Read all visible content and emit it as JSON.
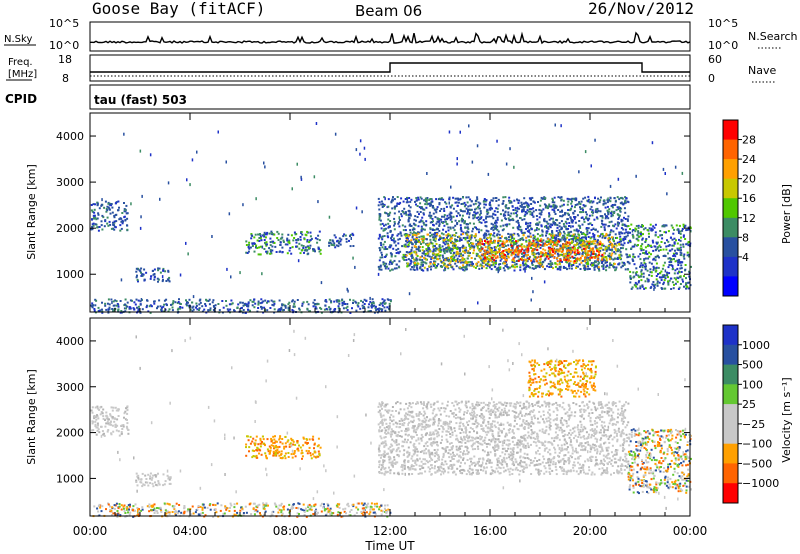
{
  "header": {
    "station": "Goose Bay (fitACF)",
    "beam": "Beam 06",
    "date": "26/Nov/2012"
  },
  "top_panels": {
    "nsky": {
      "label": "N.Sky",
      "ticks": [
        "10^5",
        "10^0"
      ]
    },
    "nsearch": {
      "label": "N.Search",
      "ticks": [
        "10^5",
        "10^0"
      ]
    },
    "freq": {
      "label_line1": "Freq.",
      "label_line2": "[MHz]",
      "ticks": [
        "18",
        "8"
      ]
    },
    "nave": {
      "label": "Nave",
      "ticks": [
        "60",
        "0"
      ]
    },
    "cpid": {
      "label": "CPID",
      "value": "tau (fast) 503"
    }
  },
  "time_axis": {
    "label": "Time UT",
    "ticks": [
      "00:00",
      "04:00",
      "08:00",
      "12:00",
      "16:00",
      "20:00",
      "00:00"
    ]
  },
  "chart_data": [
    {
      "type": "heatmap",
      "panel": "power",
      "ylabel": "Slant Range [km]",
      "yticks": [
        1000,
        2000,
        3000,
        4000
      ],
      "ylim": [
        180,
        4500
      ],
      "xlim_hours": [
        0,
        24
      ],
      "colorbar": {
        "label": "Power [dB]",
        "ticks": [
          "28",
          "24",
          "20",
          "16",
          "12",
          "8",
          "4"
        ],
        "colors": [
          "#ff0000",
          "#ff6400",
          "#ffa000",
          "#c8c800",
          "#50c800",
          "#3c8c64",
          "#2850a0",
          "#1e32c8",
          "#0000ff"
        ]
      },
      "regions": [
        {
          "t": [
            0.0,
            1.5
          ],
          "r": [
            1950,
            2600
          ],
          "level": "low"
        },
        {
          "t": [
            1.8,
            3.2
          ],
          "r": [
            850,
            1150
          ],
          "level": "low"
        },
        {
          "t": [
            6.2,
            9.2
          ],
          "r": [
            1450,
            1950
          ],
          "level": "low-mid"
        },
        {
          "t": [
            9.5,
            10.5
          ],
          "r": [
            1600,
            1900
          ],
          "level": "low"
        },
        {
          "t": [
            0.0,
            12.0
          ],
          "r": [
            180,
            480
          ],
          "level": "low"
        },
        {
          "t": [
            11.5,
            21.5
          ],
          "r": [
            1100,
            2700
          ],
          "level": "low"
        },
        {
          "t": [
            12.5,
            21.2
          ],
          "r": [
            1150,
            1900
          ],
          "level": "mid"
        },
        {
          "t": [
            15.5,
            20.5
          ],
          "r": [
            1300,
            1750
          ],
          "level": "high"
        },
        {
          "t": [
            21.5,
            24.0
          ],
          "r": [
            700,
            2100
          ],
          "level": "low-mid"
        }
      ]
    },
    {
      "type": "heatmap",
      "panel": "velocity",
      "ylabel": "Slant Range [km]",
      "yticks": [
        1000,
        2000,
        3000,
        4000
      ],
      "ylim": [
        180,
        4500
      ],
      "xlim_hours": [
        0,
        24
      ],
      "colorbar": {
        "label": "Velocity [m s⁻¹]",
        "ticks": [
          "1000",
          "500",
          "100",
          "25",
          "−25",
          "−100",
          "−500",
          "−1000"
        ],
        "colors": [
          "#1e32c8",
          "#2850a0",
          "#3c8c64",
          "#64c832",
          "#c8c8c8",
          "#c8c8c8",
          "#ffa000",
          "#ff6400",
          "#ff0000"
        ]
      },
      "regions": [
        {
          "t": [
            0.0,
            1.5
          ],
          "r": [
            1950,
            2600
          ],
          "level": "ground"
        },
        {
          "t": [
            1.8,
            3.2
          ],
          "r": [
            850,
            1150
          ],
          "level": "ground"
        },
        {
          "t": [
            6.2,
            9.2
          ],
          "r": [
            1450,
            1950
          ],
          "level": "negative"
        },
        {
          "t": [
            0.0,
            12.0
          ],
          "r": [
            180,
            480
          ],
          "level": "mixed"
        },
        {
          "t": [
            11.5,
            21.5
          ],
          "r": [
            1100,
            2700
          ],
          "level": "ground"
        },
        {
          "t": [
            17.5,
            20.2
          ],
          "r": [
            2800,
            3600
          ],
          "level": "negative"
        },
        {
          "t": [
            21.5,
            24.0
          ],
          "r": [
            700,
            2100
          ],
          "level": "mixed"
        }
      ]
    }
  ]
}
